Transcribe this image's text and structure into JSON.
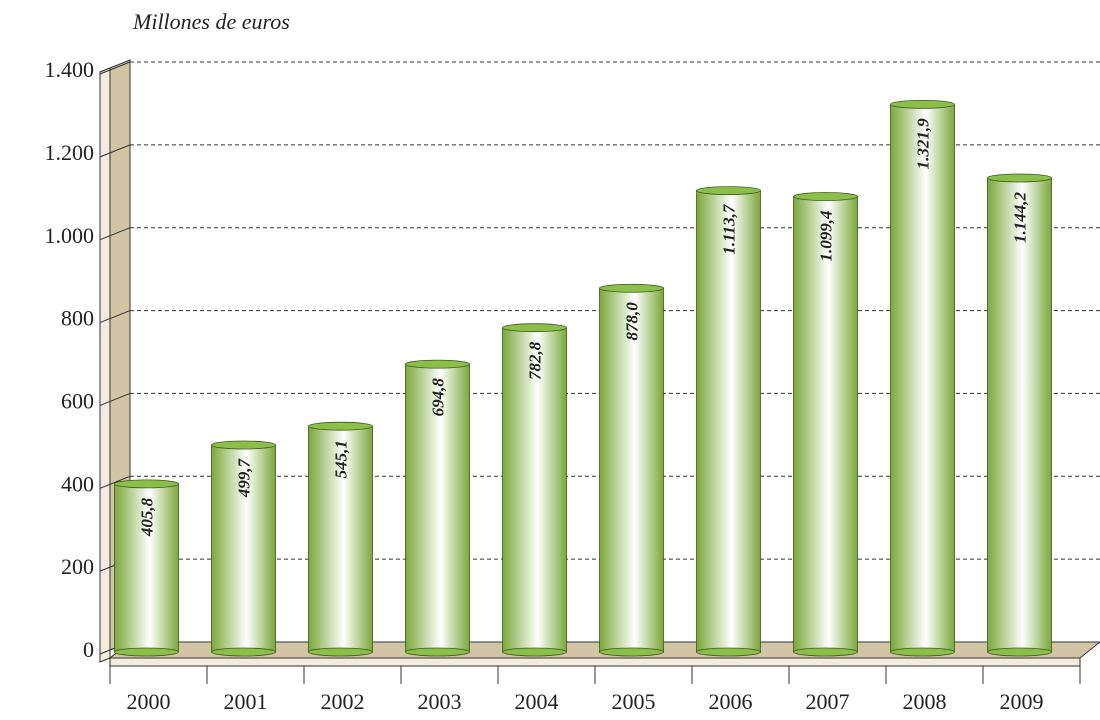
{
  "chart_data": {
    "type": "bar",
    "y_axis_title": "Millones de euros",
    "categories": [
      "2000",
      "2001",
      "2002",
      "2003",
      "2004",
      "2005",
      "2006",
      "2007",
      "2008",
      "2009"
    ],
    "values": [
      405.8,
      499.7,
      545.1,
      694.8,
      782.8,
      878.0,
      1113.7,
      1099.4,
      1321.9,
      1144.2
    ],
    "value_labels": [
      "405,8",
      "499,7",
      "545,1",
      "694,8",
      "782,8",
      "878,0",
      "1.113,7",
      "1.099,4",
      "1.321,9",
      "1.144,2"
    ],
    "color": "#8cbf4a",
    "ylim": [
      0,
      1400
    ],
    "yticks": [
      0,
      200,
      400,
      600,
      800,
      {
        "value": 1000,
        "label": "1.000"
      },
      {
        "value": 1200,
        "label": "1.200"
      },
      {
        "value": 1400,
        "label": "1.400"
      }
    ],
    "grid": true
  }
}
